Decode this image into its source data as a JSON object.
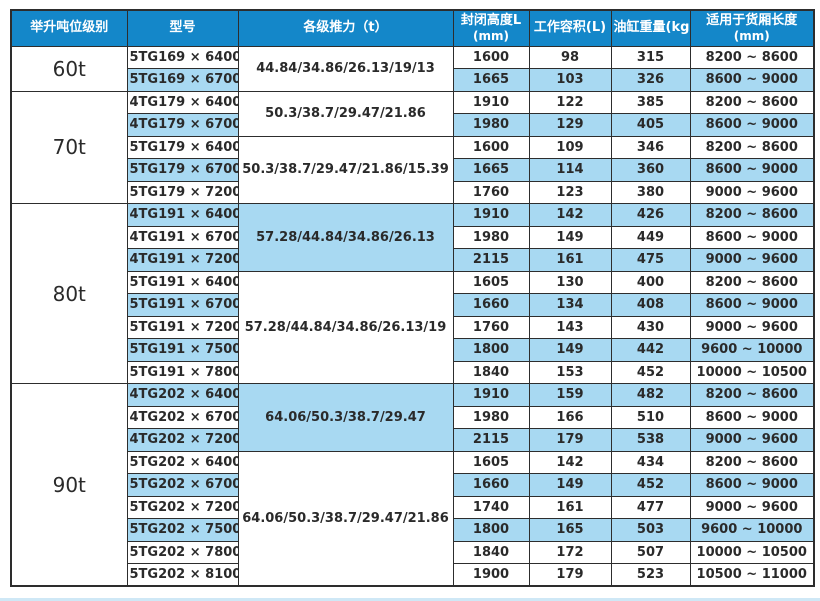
{
  "colors": {
    "header_bg": "#1487c9",
    "header_text": "#ffffff",
    "row_bg": "#ffffff",
    "row_alt_bg": "#a8d9f2",
    "border": "#2d2d2d",
    "text": "#2a2a2a",
    "strip": "#cfe8f6"
  },
  "table": {
    "headers": [
      {
        "title": "举升吨位级别",
        "sub": ""
      },
      {
        "title": "型号",
        "sub": ""
      },
      {
        "title": "各级推力（t）",
        "sub": ""
      },
      {
        "title": "封闭高度L",
        "sub": "(mm)"
      },
      {
        "title": "工作容积(L)",
        "sub": ""
      },
      {
        "title": "油缸重量(kg)",
        "sub": ""
      },
      {
        "title": "适用于货厢长度",
        "sub": "(mm)"
      }
    ],
    "groups": [
      {
        "tonnage": "60t",
        "subgroups": [
          {
            "thrust": "44.84/34.86/26.13/19/13",
            "thrust_shaded": false,
            "rows": [
              {
                "model": "5TG169 × 6400",
                "closed_height": "1600",
                "working_volume": "98",
                "cylinder_weight": "315",
                "box_length": "8200 ~ 8600",
                "shaded": false
              },
              {
                "model": "5TG169 × 6700",
                "closed_height": "1665",
                "working_volume": "103",
                "cylinder_weight": "326",
                "box_length": "8600 ~ 9000",
                "shaded": true
              }
            ]
          }
        ]
      },
      {
        "tonnage": "70t",
        "subgroups": [
          {
            "thrust": "50.3/38.7/29.47/21.86",
            "thrust_shaded": false,
            "rows": [
              {
                "model": "4TG179 × 6400",
                "closed_height": "1910",
                "working_volume": "122",
                "cylinder_weight": "385",
                "box_length": "8200 ~ 8600",
                "shaded": false
              },
              {
                "model": "4TG179 × 6700",
                "closed_height": "1980",
                "working_volume": "129",
                "cylinder_weight": "405",
                "box_length": "8600 ~ 9000",
                "shaded": true
              }
            ]
          },
          {
            "thrust": "50.3/38.7/29.47/21.86/15.39",
            "thrust_shaded": false,
            "rows": [
              {
                "model": "5TG179 × 6400",
                "closed_height": "1600",
                "working_volume": "109",
                "cylinder_weight": "346",
                "box_length": "8200 ~ 8600",
                "shaded": false
              },
              {
                "model": "5TG179 × 6700",
                "closed_height": "1665",
                "working_volume": "114",
                "cylinder_weight": "360",
                "box_length": "8600 ~ 9000",
                "shaded": true
              },
              {
                "model": "5TG179 × 7200",
                "closed_height": "1760",
                "working_volume": "123",
                "cylinder_weight": "380",
                "box_length": "9000 ~ 9600",
                "shaded": false
              }
            ]
          }
        ]
      },
      {
        "tonnage": "80t",
        "subgroups": [
          {
            "thrust": "57.28/44.84/34.86/26.13",
            "thrust_shaded": true,
            "rows": [
              {
                "model": "4TG191 × 6400",
                "closed_height": "1910",
                "working_volume": "142",
                "cylinder_weight": "426",
                "box_length": "8200 ~ 8600",
                "shaded": true
              },
              {
                "model": "4TG191 × 6700",
                "closed_height": "1980",
                "working_volume": "149",
                "cylinder_weight": "449",
                "box_length": "8600 ~ 9000",
                "shaded": false
              },
              {
                "model": "4TG191 × 7200",
                "closed_height": "2115",
                "working_volume": "161",
                "cylinder_weight": "475",
                "box_length": "9000 ~ 9600",
                "shaded": true
              }
            ]
          },
          {
            "thrust": "57.28/44.84/34.86/26.13/19",
            "thrust_shaded": false,
            "rows": [
              {
                "model": "5TG191 × 6400",
                "closed_height": "1605",
                "working_volume": "130",
                "cylinder_weight": "400",
                "box_length": "8200 ~ 8600",
                "shaded": false
              },
              {
                "model": "5TG191 × 6700",
                "closed_height": "1660",
                "working_volume": "134",
                "cylinder_weight": "408",
                "box_length": "8600 ~ 9000",
                "shaded": true
              },
              {
                "model": "5TG191 × 7200",
                "closed_height": "1760",
                "working_volume": "143",
                "cylinder_weight": "430",
                "box_length": "9000 ~ 9600",
                "shaded": false
              },
              {
                "model": "5TG191 × 7500",
                "closed_height": "1800",
                "working_volume": "149",
                "cylinder_weight": "442",
                "box_length": "9600 ~ 10000",
                "shaded": true
              },
              {
                "model": "5TG191 × 7800",
                "closed_height": "1840",
                "working_volume": "153",
                "cylinder_weight": "452",
                "box_length": "10000 ~ 10500",
                "shaded": false
              }
            ]
          }
        ]
      },
      {
        "tonnage": "90t",
        "subgroups": [
          {
            "thrust": "64.06/50.3/38.7/29.47",
            "thrust_shaded": true,
            "rows": [
              {
                "model": "4TG202 × 6400",
                "closed_height": "1910",
                "working_volume": "159",
                "cylinder_weight": "482",
                "box_length": "8200 ~ 8600",
                "shaded": true
              },
              {
                "model": "4TG202 × 6700",
                "closed_height": "1980",
                "working_volume": "166",
                "cylinder_weight": "510",
                "box_length": "8600 ~ 9000",
                "shaded": false
              },
              {
                "model": "4TG202 × 7200",
                "closed_height": "2115",
                "working_volume": "179",
                "cylinder_weight": "538",
                "box_length": "9000 ~ 9600",
                "shaded": true
              }
            ]
          },
          {
            "thrust": "64.06/50.3/38.7/29.47/21.86",
            "thrust_shaded": false,
            "rows": [
              {
                "model": "5TG202 × 6400",
                "closed_height": "1605",
                "working_volume": "142",
                "cylinder_weight": "434",
                "box_length": "8200 ~ 8600",
                "shaded": false
              },
              {
                "model": "5TG202 × 6700",
                "closed_height": "1660",
                "working_volume": "149",
                "cylinder_weight": "452",
                "box_length": "8600 ~ 9000",
                "shaded": true
              },
              {
                "model": "5TG202 × 7200",
                "closed_height": "1740",
                "working_volume": "161",
                "cylinder_weight": "477",
                "box_length": "9000 ~ 9600",
                "shaded": false
              },
              {
                "model": "5TG202 × 7500",
                "closed_height": "1800",
                "working_volume": "165",
                "cylinder_weight": "503",
                "box_length": "9600 ~ 10000",
                "shaded": true
              },
              {
                "model": "5TG202 × 7800",
                "closed_height": "1840",
                "working_volume": "172",
                "cylinder_weight": "507",
                "box_length": "10000 ~ 10500",
                "shaded": false
              },
              {
                "model": "5TG202 × 8100",
                "closed_height": "1900",
                "working_volume": "179",
                "cylinder_weight": "523",
                "box_length": "10500 ~ 11000",
                "shaded": false
              }
            ]
          }
        ]
      }
    ]
  }
}
